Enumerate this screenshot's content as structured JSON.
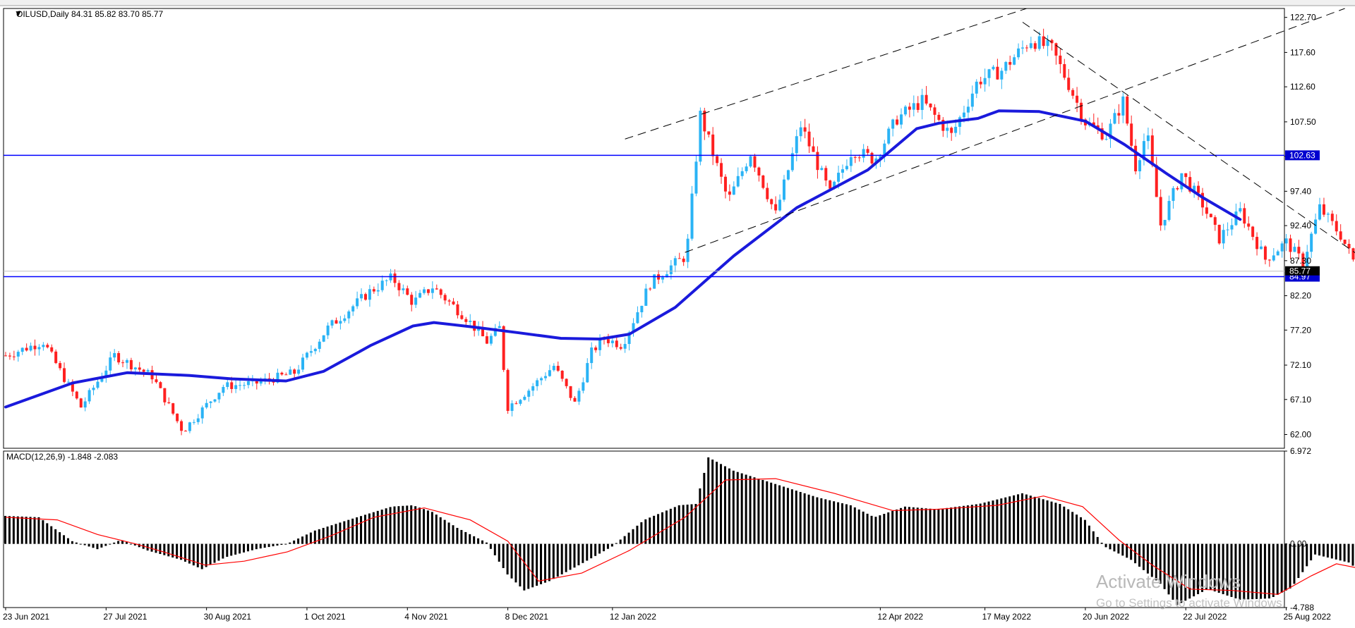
{
  "chart_data": [
    {
      "type": "candlestick",
      "symbol_header": "OILUSD,Daily  84.31 85.82 83.70 85.77",
      "symbol": "OILUSD",
      "timeframe": "Daily",
      "ohlc": {
        "open": 84.31,
        "high": 85.82,
        "low": 83.7,
        "close": 85.77
      },
      "price_axis_ticks": [
        "122.70",
        "117.60",
        "112.60",
        "107.50",
        "102.50",
        "97.40",
        "92.40",
        "87.30",
        "82.20",
        "77.20",
        "72.10",
        "67.10",
        "62.00"
      ],
      "ylim": [
        60.0,
        124.0
      ],
      "current_price_label": "85.77",
      "colors": {
        "up": "#2ab3f5",
        "down": "#ff2020",
        "ma": "#1a1adc",
        "level": "#0000ff",
        "price_tag_bg": "#0000d0"
      },
      "horizontal_levels": [
        {
          "value": 102.63,
          "label": "102.63"
        },
        {
          "value": 84.97,
          "label": "84.97"
        }
      ],
      "trendlines": [
        {
          "style": "dashed",
          "from": [
            "2022-01-17",
            105.0
          ],
          "to": [
            "2022-06-03",
            124.6
          ]
        },
        {
          "style": "dashed",
          "from": [
            "2022-02-05",
            88.5
          ],
          "to": [
            "2022-09-18",
            124.6
          ]
        },
        {
          "style": "dashed",
          "from": [
            "2022-05-30",
            122.0
          ],
          "to": [
            "2022-12-20",
            60.0
          ]
        }
      ],
      "moving_average_anchors": [
        [
          "2021-06-23",
          66.0
        ],
        [
          "2021-07-15",
          69.5
        ],
        [
          "2021-08-03",
          71.0
        ],
        [
          "2021-08-24",
          70.6
        ],
        [
          "2021-09-07",
          70.1
        ],
        [
          "2021-09-24",
          69.8
        ],
        [
          "2021-10-07",
          71.2
        ],
        [
          "2021-10-23",
          75.0
        ],
        [
          "2021-11-06",
          77.8
        ],
        [
          "2021-11-13",
          78.3
        ],
        [
          "2021-11-27",
          77.6
        ],
        [
          "2021-12-12",
          76.8
        ],
        [
          "2021-12-26",
          76.0
        ],
        [
          "2022-01-07",
          75.9
        ],
        [
          "2022-01-18",
          76.6
        ],
        [
          "2022-02-02",
          80.5
        ],
        [
          "2022-02-22",
          88.0
        ],
        [
          "2022-03-15",
          95.0
        ],
        [
          "2022-04-07",
          100.5
        ],
        [
          "2022-04-24",
          106.5
        ],
        [
          "2022-05-02",
          107.3
        ],
        [
          "2022-05-14",
          108.0
        ],
        [
          "2022-05-21",
          109.1
        ],
        [
          "2022-06-03",
          109.0
        ],
        [
          "2022-06-20",
          107.6
        ],
        [
          "2022-07-02",
          104.2
        ],
        [
          "2022-07-16",
          100.0
        ],
        [
          "2022-07-28",
          96.5
        ],
        [
          "2022-08-10",
          93.3
        ]
      ],
      "price_path": [
        [
          "2021-06-23",
          73.5
        ],
        [
          "2021-07-06",
          75.5
        ],
        [
          "2021-07-19",
          66.0
        ],
        [
          "2021-07-29",
          73.5
        ],
        [
          "2021-08-11",
          70.5
        ],
        [
          "2021-08-21",
          62.5
        ],
        [
          "2021-09-03",
          69.0
        ],
        [
          "2021-09-15",
          69.5
        ],
        [
          "2021-09-28",
          71.0
        ],
        [
          "2021-10-08",
          77.5
        ],
        [
          "2021-10-22",
          82.8
        ],
        [
          "2021-10-30",
          84.8
        ],
        [
          "2021-11-06",
          81.2
        ],
        [
          "2021-11-12",
          83.5
        ],
        [
          "2021-11-24",
          79.0
        ],
        [
          "2021-12-01",
          75.5
        ],
        [
          "2021-12-06",
          77.5
        ],
        [
          "2021-12-08",
          66.0
        ],
        [
          "2021-12-15",
          68.5
        ],
        [
          "2021-12-23",
          72.0
        ],
        [
          "2021-12-30",
          66.5
        ],
        [
          "2022-01-05",
          74.0
        ],
        [
          "2022-01-10",
          76.0
        ],
        [
          "2022-01-15",
          75.0
        ],
        [
          "2022-01-25",
          84.0
        ],
        [
          "2022-02-01",
          86.5
        ],
        [
          "2022-02-06",
          88.0
        ],
        [
          "2022-02-10",
          108.5
        ],
        [
          "2022-02-20",
          96.0
        ],
        [
          "2022-02-28",
          103.0
        ],
        [
          "2022-03-08",
          94.0
        ],
        [
          "2022-03-16",
          107.0
        ],
        [
          "2022-03-25",
          97.0
        ],
        [
          "2022-04-02",
          103.5
        ],
        [
          "2022-04-10",
          102.0
        ],
        [
          "2022-04-18",
          108.0
        ],
        [
          "2022-04-26",
          110.5
        ],
        [
          "2022-05-05",
          105.5
        ],
        [
          "2022-05-14",
          113.5
        ],
        [
          "2022-05-23",
          115.0
        ],
        [
          "2022-06-01",
          119.5
        ],
        [
          "2022-06-08",
          118.0
        ],
        [
          "2022-06-14",
          113.0
        ],
        [
          "2022-06-20",
          107.5
        ],
        [
          "2022-06-27",
          105.5
        ],
        [
          "2022-07-01",
          110.5
        ],
        [
          "2022-07-06",
          101.0
        ],
        [
          "2022-07-10",
          106.0
        ],
        [
          "2022-07-14",
          92.5
        ],
        [
          "2022-07-21",
          100.0
        ],
        [
          "2022-07-28",
          95.5
        ],
        [
          "2022-08-03",
          90.5
        ],
        [
          "2022-08-10",
          94.5
        ],
        [
          "2022-08-18",
          87.5
        ],
        [
          "2022-08-25",
          90.0
        ],
        [
          "2022-08-31",
          87.0
        ],
        [
          "2022-09-06",
          95.0
        ],
        [
          "2022-09-13",
          91.0
        ],
        [
          "2022-09-18",
          86.5
        ],
        [
          "2022-09-21",
          83.0
        ],
        [
          "2022-09-25",
          88.0
        ],
        [
          "2022-09-30",
          85.77
        ]
      ]
    },
    {
      "type": "macd",
      "header": "MACD(12,26,9) -1.848 -2.083",
      "macd_value": -1.848,
      "signal_value": -2.083,
      "axis_ticks": [
        "6.972",
        "0.00",
        "-4.788"
      ],
      "ylim": [
        -4.788,
        6.972
      ],
      "colors": {
        "histogram": "#000000",
        "signal": "#ff0000"
      },
      "macd_path": [
        [
          "2021-06-23",
          2.1
        ],
        [
          "2021-07-05",
          2.0
        ],
        [
          "2021-07-15",
          0.2
        ],
        [
          "2021-07-23",
          -0.4
        ],
        [
          "2021-08-01",
          0.3
        ],
        [
          "2021-08-10",
          -0.5
        ],
        [
          "2021-08-20",
          -1.2
        ],
        [
          "2021-08-27",
          -1.9
        ],
        [
          "2021-09-05",
          -1.0
        ],
        [
          "2021-09-15",
          -0.4
        ],
        [
          "2021-09-25",
          0.0
        ],
        [
          "2021-10-05",
          1.0
        ],
        [
          "2021-10-15",
          1.8
        ],
        [
          "2021-10-30",
          2.8
        ],
        [
          "2021-11-06",
          2.9
        ],
        [
          "2021-11-12",
          2.4
        ],
        [
          "2021-11-22",
          1.2
        ],
        [
          "2021-12-01",
          0.1
        ],
        [
          "2021-12-08",
          -2.3
        ],
        [
          "2021-12-14",
          -3.5
        ],
        [
          "2021-12-22",
          -2.8
        ],
        [
          "2022-01-02",
          -1.5
        ],
        [
          "2022-01-12",
          -0.2
        ],
        [
          "2022-01-23",
          1.8
        ],
        [
          "2022-02-03",
          2.9
        ],
        [
          "2022-02-09",
          3.0
        ],
        [
          "2022-02-14",
          6.5
        ],
        [
          "2022-02-22",
          5.5
        ],
        [
          "2022-03-08",
          4.5
        ],
        [
          "2022-03-22",
          3.5
        ],
        [
          "2022-04-01",
          2.9
        ],
        [
          "2022-04-10",
          2.0
        ],
        [
          "2022-04-20",
          2.8
        ],
        [
          "2022-05-01",
          2.6
        ],
        [
          "2022-05-15",
          3.0
        ],
        [
          "2022-05-30",
          3.8
        ],
        [
          "2022-06-10",
          3.0
        ],
        [
          "2022-06-20",
          1.8
        ],
        [
          "2022-06-26",
          -0.2
        ],
        [
          "2022-07-05",
          -1.2
        ],
        [
          "2022-07-14",
          -3.0
        ],
        [
          "2022-07-20",
          -4.6
        ],
        [
          "2022-07-30",
          -3.4
        ],
        [
          "2022-08-10",
          -4.2
        ],
        [
          "2022-08-20",
          -4.1
        ],
        [
          "2022-08-27",
          -3.3
        ],
        [
          "2022-09-05",
          -0.8
        ],
        [
          "2022-09-15",
          -1.4
        ],
        [
          "2022-09-22",
          -2.6
        ],
        [
          "2022-09-30",
          -1.848
        ]
      ],
      "signal_path": [
        [
          "2021-06-23",
          2.0
        ],
        [
          "2021-07-10",
          1.8
        ],
        [
          "2021-07-23",
          0.7
        ],
        [
          "2021-08-05",
          0.0
        ],
        [
          "2021-08-15",
          -0.6
        ],
        [
          "2021-08-29",
          -1.6
        ],
        [
          "2021-09-10",
          -1.3
        ],
        [
          "2021-09-25",
          -0.6
        ],
        [
          "2021-10-10",
          0.6
        ],
        [
          "2021-10-25",
          2.0
        ],
        [
          "2021-11-10",
          2.7
        ],
        [
          "2021-11-25",
          1.8
        ],
        [
          "2021-12-08",
          0.2
        ],
        [
          "2021-12-18",
          -2.8
        ],
        [
          "2022-01-02",
          -2.2
        ],
        [
          "2022-01-18",
          -0.5
        ],
        [
          "2022-02-05",
          2.0
        ],
        [
          "2022-02-18",
          4.8
        ],
        [
          "2022-03-08",
          4.9
        ],
        [
          "2022-03-28",
          3.8
        ],
        [
          "2022-04-15",
          2.5
        ],
        [
          "2022-05-01",
          2.6
        ],
        [
          "2022-05-20",
          2.9
        ],
        [
          "2022-06-06",
          3.6
        ],
        [
          "2022-06-18",
          2.8
        ],
        [
          "2022-06-30",
          0.3
        ],
        [
          "2022-07-12",
          -1.6
        ],
        [
          "2022-07-25",
          -3.4
        ],
        [
          "2022-08-08",
          -3.5
        ],
        [
          "2022-08-23",
          -3.8
        ],
        [
          "2022-09-02",
          -2.4
        ],
        [
          "2022-09-12",
          -1.5
        ],
        [
          "2022-09-22",
          -2.0
        ],
        [
          "2022-09-30",
          -2.083
        ]
      ]
    }
  ],
  "time_axis_labels": [
    {
      "text": "23 Jun 2021",
      "date": "2021-06-23"
    },
    {
      "text": "27 Jul 2021",
      "date": "2021-07-27"
    },
    {
      "text": "30 Aug 2021",
      "date": "2021-08-30"
    },
    {
      "text": "1 Oct 2021",
      "date": "2021-10-01"
    },
    {
      "text": "4 Nov 2021",
      "date": "2021-11-04"
    },
    {
      "text": "8 Dec 2021",
      "date": "2021-12-08"
    },
    {
      "text": "12 Jan 2022",
      "date": "2022-01-12"
    },
    {
      "text": "12 Apr 2022",
      "date": "2022-04-12"
    },
    {
      "text": "17 May 2022",
      "date": "2022-05-17"
    },
    {
      "text": "20 Jun 2022",
      "date": "2022-06-20"
    },
    {
      "text": "22 Jul 2022",
      "date": "2022-07-22"
    },
    {
      "text": "25 Aug 2022",
      "date": "2022-08-25"
    }
  ],
  "watermark": {
    "title": "Activate Windows",
    "subtitle": "Go to Settings to activate Windows."
  }
}
